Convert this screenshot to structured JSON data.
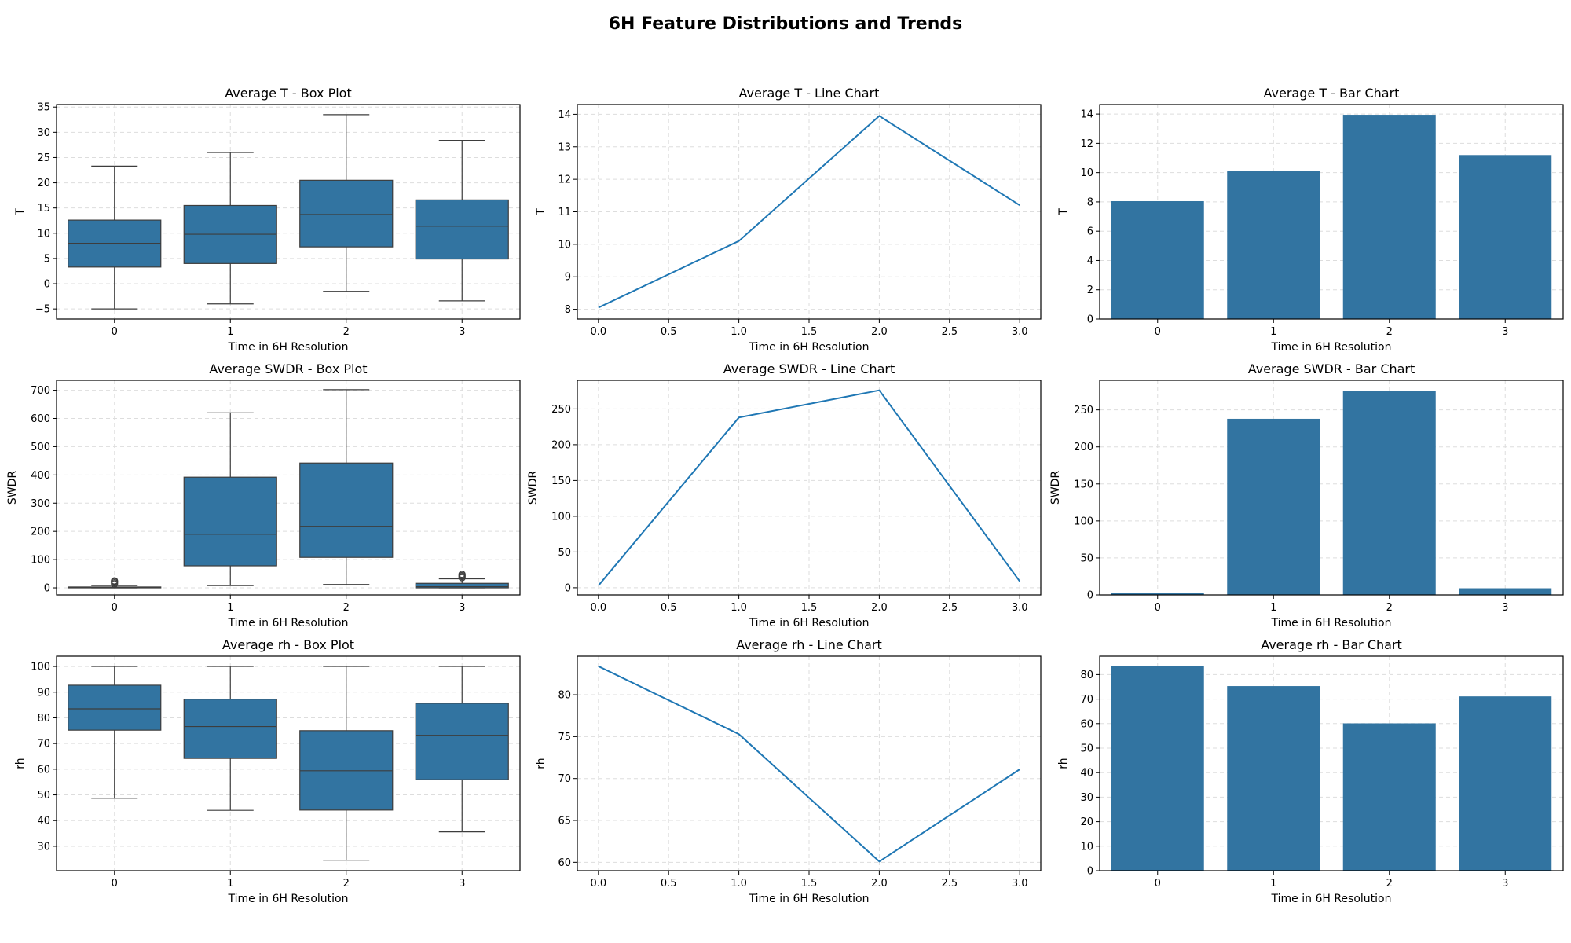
{
  "figure": {
    "title": "6H Feature Distributions and Trends"
  },
  "style": {
    "series_color": "#3274a1",
    "line_color": "#1f77b4",
    "grid_color": "#dddddd",
    "grid": true
  },
  "chart_data": [
    {
      "type": "box",
      "title": "Average T - Box Plot",
      "xlabel": "Time in 6H Resolution",
      "ylabel": "T",
      "categories": [
        "0",
        "1",
        "2",
        "3"
      ],
      "ylim": [
        -7,
        35.5
      ],
      "yticks": [
        -5,
        0,
        5,
        10,
        15,
        20,
        25,
        30,
        35
      ],
      "boxes": [
        {
          "whisker_low": -5,
          "q1": 3.3,
          "median": 8,
          "q3": 12.6,
          "whisker_high": 23.3,
          "outliers": []
        },
        {
          "whisker_low": -4,
          "q1": 4,
          "median": 9.8,
          "q3": 15.5,
          "whisker_high": 26,
          "outliers": []
        },
        {
          "whisker_low": -1.5,
          "q1": 7.3,
          "median": 13.7,
          "q3": 20.5,
          "whisker_high": 33.5,
          "outliers": []
        },
        {
          "whisker_low": -3.4,
          "q1": 4.9,
          "median": 11.4,
          "q3": 16.6,
          "whisker_high": 28.4,
          "outliers": []
        }
      ]
    },
    {
      "type": "line",
      "title": "Average T - Line Chart",
      "xlabel": "Time in 6H Resolution",
      "ylabel": "T",
      "x": [
        0,
        1,
        2,
        3
      ],
      "values": [
        8.05,
        10.1,
        13.95,
        11.2
      ],
      "xlim": [
        -0.15,
        3.15
      ],
      "xticks": [
        "0.0",
        "0.5",
        "1.0",
        "1.5",
        "2.0",
        "2.5",
        "3.0"
      ],
      "ylim": [
        7.7,
        14.3
      ],
      "yticks": [
        8,
        9,
        10,
        11,
        12,
        13,
        14
      ]
    },
    {
      "type": "bar",
      "title": "Average T - Bar Chart",
      "xlabel": "Time in 6H Resolution",
      "ylabel": "T",
      "categories": [
        "0",
        "1",
        "2",
        "3"
      ],
      "values": [
        8.05,
        10.1,
        13.95,
        11.2
      ],
      "ylim": [
        0,
        14.65
      ],
      "yticks": [
        0,
        2,
        4,
        6,
        8,
        10,
        12,
        14
      ]
    },
    {
      "type": "box",
      "title": "Average SWDR - Box Plot",
      "xlabel": "Time in 6H Resolution",
      "ylabel": "SWDR",
      "categories": [
        "0",
        "1",
        "2",
        "3"
      ],
      "ylim": [
        -25,
        735
      ],
      "yticks": [
        0,
        100,
        200,
        300,
        400,
        500,
        600,
        700
      ],
      "boxes": [
        {
          "whisker_low": 0,
          "q1": 0,
          "median": 1,
          "q3": 3,
          "whisker_high": 8,
          "outliers": [
            14,
            18,
            22,
            25
          ]
        },
        {
          "whisker_low": 8,
          "q1": 78,
          "median": 190,
          "q3": 392,
          "whisker_high": 620,
          "outliers": []
        },
        {
          "whisker_low": 12,
          "q1": 108,
          "median": 218,
          "q3": 442,
          "whisker_high": 702,
          "outliers": []
        },
        {
          "whisker_low": 0,
          "q1": 0,
          "median": 4,
          "q3": 16,
          "whisker_high": 32,
          "outliers": [
            36,
            40,
            44,
            48
          ]
        }
      ]
    },
    {
      "type": "line",
      "title": "Average SWDR - Line Chart",
      "xlabel": "Time in 6H Resolution",
      "ylabel": "SWDR",
      "x": [
        0,
        1,
        2,
        3
      ],
      "values": [
        3,
        238,
        276,
        9
      ],
      "xlim": [
        -0.15,
        3.15
      ],
      "xticks": [
        "0.0",
        "0.5",
        "1.0",
        "1.5",
        "2.0",
        "2.5",
        "3.0"
      ],
      "ylim": [
        -10,
        290
      ],
      "yticks": [
        0,
        50,
        100,
        150,
        200,
        250
      ]
    },
    {
      "type": "bar",
      "title": "Average SWDR - Bar Chart",
      "xlabel": "Time in 6H Resolution",
      "ylabel": "SWDR",
      "categories": [
        "0",
        "1",
        "2",
        "3"
      ],
      "values": [
        3,
        238,
        276,
        9
      ],
      "ylim": [
        0,
        290
      ],
      "yticks": [
        0,
        50,
        100,
        150,
        200,
        250
      ]
    },
    {
      "type": "box",
      "title": "Average rh - Box Plot",
      "xlabel": "Time in 6H Resolution",
      "ylabel": "rh",
      "categories": [
        "0",
        "1",
        "2",
        "3"
      ],
      "ylim": [
        20.5,
        104
      ],
      "yticks": [
        30,
        40,
        50,
        60,
        70,
        80,
        90,
        100
      ],
      "boxes": [
        {
          "whisker_low": 48.7,
          "q1": 75.2,
          "median": 83.5,
          "q3": 92.7,
          "whisker_high": 100,
          "outliers": []
        },
        {
          "whisker_low": 44,
          "q1": 64.2,
          "median": 76.6,
          "q3": 87.3,
          "whisker_high": 100,
          "outliers": []
        },
        {
          "whisker_low": 24.6,
          "q1": 44.1,
          "median": 59.4,
          "q3": 75,
          "whisker_high": 100,
          "outliers": []
        },
        {
          "whisker_low": 35.6,
          "q1": 55.9,
          "median": 73.2,
          "q3": 85.7,
          "whisker_high": 100,
          "outliers": []
        }
      ]
    },
    {
      "type": "line",
      "title": "Average rh - Line Chart",
      "xlabel": "Time in 6H Resolution",
      "ylabel": "rh",
      "x": [
        0,
        1,
        2,
        3
      ],
      "values": [
        83.4,
        75.3,
        60.1,
        71.1
      ],
      "xlim": [
        -0.15,
        3.15
      ],
      "xticks": [
        "0.0",
        "0.5",
        "1.0",
        "1.5",
        "2.0",
        "2.5",
        "3.0"
      ],
      "ylim": [
        59,
        84.6
      ],
      "yticks": [
        60,
        65,
        70,
        75,
        80
      ]
    },
    {
      "type": "bar",
      "title": "Average rh - Bar Chart",
      "xlabel": "Time in 6H Resolution",
      "ylabel": "rh",
      "categories": [
        "0",
        "1",
        "2",
        "3"
      ],
      "values": [
        83.4,
        75.3,
        60.1,
        71.1
      ],
      "ylim": [
        0,
        87.5
      ],
      "yticks": [
        0,
        10,
        20,
        30,
        40,
        50,
        60,
        70,
        80
      ]
    }
  ]
}
